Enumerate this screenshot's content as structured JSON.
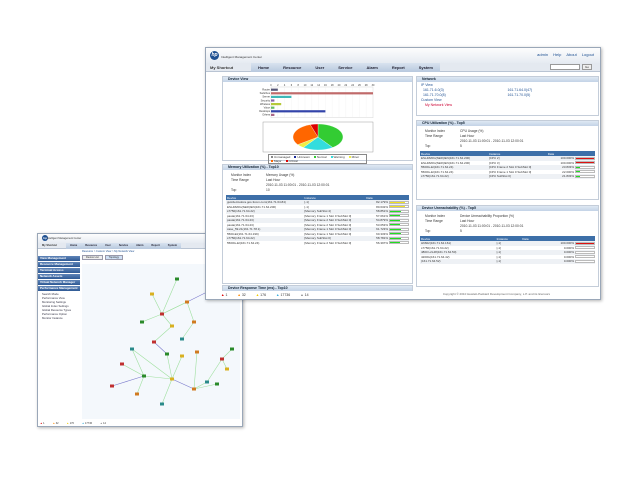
{
  "app": {
    "title": "Intelligent Management Center",
    "shortcut": "My Shortcut",
    "user": "admin",
    "links": [
      "Help",
      "About",
      "Logout"
    ],
    "tabs": [
      "Home",
      "Resource",
      "User",
      "Service",
      "Alarm",
      "Report",
      "System"
    ],
    "search_button": "Go"
  },
  "device_view": {
    "title": "Device View",
    "chart_data": {
      "type": "bar",
      "orientation": "horizontal",
      "categories": [
        "Router",
        "Switches",
        "Server",
        "Security",
        "Wireless",
        "Voice",
        "Desktops",
        "Others"
      ],
      "values": [
        2,
        30,
        6,
        1,
        3,
        1,
        16,
        1
      ],
      "xlim": [
        0,
        30
      ],
      "ticks": [
        0,
        2,
        4,
        6,
        8,
        10,
        12,
        14,
        16,
        18,
        20,
        22,
        24,
        26,
        28,
        30
      ],
      "colors": [
        "#555577",
        "#c06a6a",
        "#3fb8b8",
        "#8866aa",
        "#b5c93a",
        "#66bb66",
        "#3344aa",
        "#aa6688"
      ],
      "pie": {
        "type": "pie",
        "labels": [
          "Unmanaged",
          "Unknown",
          "Normal",
          "Warning",
          "Minor",
          "Major",
          "Critical"
        ],
        "values": [
          0,
          0,
          40,
          20,
          5,
          30,
          5
        ],
        "colors": [
          "#888888",
          "#1a2a9a",
          "#33cc33",
          "#33dddd",
          "#eeee44",
          "#ff6600",
          "#dd0000"
        ]
      }
    }
  },
  "memory": {
    "title": "Memory Utilization (%) - Top10",
    "monitor_index_label": "Monitor Index",
    "monitor_index": "Memory Usage (%)",
    "time_range_label": "Time Range",
    "time_range": "Last Hour",
    "period": "2010-11-03 11:00:01 - 2010-11-03 12:00:01",
    "top_label": "Top",
    "top": "10",
    "columns": [
      "Device",
      "Instance",
      "Data"
    ],
    "rows": [
      [
        "guizdel-fedora.gos.3com.com(161.71.64.84)",
        "[-1]",
        "82.179%",
        82.179,
        "#f0e020"
      ],
      [
        "ESL4820G(SER)/EN(161.71.64.200)",
        "[-1]",
        "80.632%",
        80.632,
        "#f0e020"
      ],
      [
        "s7750(161.71.64.22)",
        "[Memory SubSlot 4]",
        "58.851%",
        58.851,
        "#22dd22"
      ],
      [
        "pasta(161.71.64.23)",
        "[Memory Frame 1 Slot 0 SubSlot 0]",
        "57.061%",
        57.061,
        "#22dd22"
      ],
      [
        "pasta(161.71.64.23)",
        "[Memory Frame 2 Slot 0 SubSlot 0]",
        "54.879%",
        54.879,
        "#22dd22"
      ],
      [
        "pasta(161.71.64.23)",
        "[Memory Frame 2 Slot 0 SubSlot 0]",
        "53.053%",
        53.053,
        "#22dd22"
      ],
      [
        "case_59.21(161.71.78.1)",
        "[Memory Frame 1 Slot 0 SubSlot 0]",
        "61.723%",
        61.723,
        "#22dd22"
      ],
      [
        "5500-EI(161.71.64.199)",
        "[Memory Frame 1 Slot 0 SubSlot 0]",
        "60.333%",
        60.333,
        "#22dd22"
      ],
      [
        "s7750(161.71.64.22)",
        "[Memory SubSlot 0]",
        "58.781%",
        58.781,
        "#22dd22"
      ],
      [
        "5500G-EI(161.71.64.24)",
        "[Memory Frame 2 Slot 0 SubSlot 0]",
        "56.397%",
        56.397,
        "#22dd22"
      ]
    ]
  },
  "response_time": {
    "title": "Device Response Time (ms) - Top10"
  },
  "network": {
    "title": "Network",
    "ip_view": "IP View",
    "subnets": [
      "161.71.6.0(3)",
      "161.71.64.0(47)",
      "161.71.70.0(8)",
      "161.71.70.0(5)"
    ],
    "custom_view": "Custom View",
    "my_view": "My Network View"
  },
  "cpu": {
    "title": "CPU Utilization (%) - Top5",
    "monitor_index_label": "Monitor Index",
    "monitor_index": "CPU Usage (%)",
    "time_range_label": "Time Range",
    "time_range": "Last Hour",
    "period": "2010-11-03 11:00:01 - 2010-11-03 12:00:01",
    "top_label": "Top",
    "top": "5",
    "columns": [
      "Device",
      "Instance",
      "Data"
    ],
    "rows": [
      [
        "ESL4820G(SER)/EN(161.71.64.200)",
        "[CPU 2]",
        "100.000%",
        100,
        "#dd1111"
      ],
      [
        "ESL4820G(SER)/EN(161.71.64.200)",
        "[CPU 3]",
        "100.000%",
        100,
        "#dd1111"
      ],
      [
        "5500G-EI(161.71.64.24)",
        "[CPU Frame 2 Slot 0 SubSlot 0]",
        "23.833%",
        23.833,
        "#22dd22"
      ],
      [
        "5500G-EI(161.71.64.24)",
        "[CPU Frame 1 Slot 0 SubSlot 0]",
        "22.000%",
        22,
        "#22dd22"
      ],
      [
        "s7750(161.71.64.22)",
        "[CPU SubSlot 0]",
        "21.833%",
        21.833,
        "#22dd22"
      ]
    ]
  },
  "unreach": {
    "title": "Device Unreachability (%) - Top5",
    "monitor_index_label": "Monitor Index",
    "monitor_index": "Device Unreachability Proportion (%)",
    "time_range_label": "Time Range",
    "time_range": "Last Hour",
    "period": "2010-11-03 11:00:01 - 2010-11-03 12:00:01",
    "top_label": "Top",
    "top": "5",
    "columns": [
      "Device",
      "Instance",
      "Data"
    ],
    "rows": [
      [
        "H6602(161.71.64.161)",
        "[-1]",
        "100.000%",
        100,
        "#dd1111"
      ],
      [
        "s7750(161.71.64.22)",
        "[-1]",
        "0.000%",
        0,
        "#22dd22"
      ],
      [
        "4800 L2L48(161.71.64.50)",
        "[-1]",
        "0.000%",
        0,
        "#22dd22"
      ],
      [
        "4200G(161.71.64.42)",
        "[-1]",
        "0.000%",
        0,
        "#22dd22"
      ],
      [
        "(161.71.64.52)",
        "[-1]",
        "0.000%",
        0,
        "#22dd22"
      ]
    ]
  },
  "status": {
    "alarms": [
      {
        "count": "1",
        "color": "#dd0000"
      },
      {
        "count": "32",
        "color": "#ff8800"
      },
      {
        "count": "176",
        "color": "#eecc00"
      },
      {
        "count": "17736",
        "color": "#33aadd"
      },
      {
        "count": "14",
        "color": "#888888"
      }
    ]
  },
  "copyright": "Copyright © 2010 Hewlett-Packard Development Company, L.P. and its licensors",
  "left_window": {
    "title": "Intelligent Management Center",
    "shortcut": "My Shortcut",
    "tabs": [
      "Home",
      "Resource",
      "User",
      "Service",
      "Alarm",
      "Report",
      "System"
    ],
    "sidebar": [
      "View Management",
      "Resource Management",
      "Terminal Access",
      "Network Assets",
      "Virtual Network Manager",
      "Performance Management"
    ],
    "subitems": [
      "Search Mode",
      "Performance View",
      "Monitoring Settings",
      "Global Index Settings",
      "Global Resource Types",
      "Performance Option",
      "Monitor Instance"
    ],
    "breadcrumb": "Resource > Custom View > My Network View",
    "view_tabs": [
      "Device List",
      "Topology"
    ]
  }
}
